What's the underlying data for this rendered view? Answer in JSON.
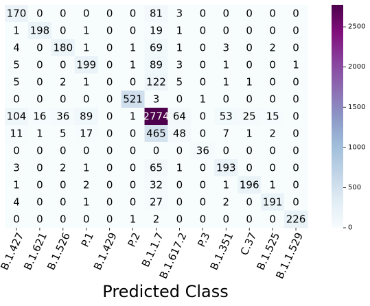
{
  "chart_data": {
    "type": "heatmap",
    "title": "",
    "xlabel": "Predicted Class",
    "ylabel": "",
    "x_categories": [
      "B.1.427",
      "B.1.621",
      "B.1.526",
      "P.1",
      "B.1.429",
      "P.2",
      "B.1.1.7",
      "B.1.617.2",
      "P.3",
      "B.1.351",
      "C.37",
      "B.1.525",
      "B.1.1.529"
    ],
    "matrix": [
      [
        170,
        0,
        0,
        0,
        0,
        0,
        81,
        3,
        0,
        0,
        0,
        0,
        0
      ],
      [
        1,
        198,
        0,
        1,
        0,
        0,
        19,
        1,
        0,
        0,
        0,
        0,
        0
      ],
      [
        4,
        0,
        180,
        1,
        0,
        1,
        69,
        1,
        0,
        3,
        0,
        2,
        0
      ],
      [
        5,
        0,
        0,
        199,
        0,
        1,
        89,
        3,
        0,
        1,
        0,
        0,
        1
      ],
      [
        5,
        0,
        2,
        1,
        0,
        0,
        122,
        5,
        0,
        1,
        1,
        0,
        0
      ],
      [
        0,
        0,
        0,
        0,
        0,
        521,
        3,
        0,
        1,
        0,
        0,
        0,
        0
      ],
      [
        104,
        16,
        36,
        89,
        0,
        1,
        2774,
        64,
        0,
        53,
        25,
        15,
        0
      ],
      [
        11,
        1,
        5,
        17,
        0,
        0,
        465,
        48,
        0,
        7,
        1,
        2,
        0
      ],
      [
        0,
        0,
        0,
        0,
        0,
        0,
        0,
        0,
        36,
        0,
        0,
        0,
        0
      ],
      [
        3,
        0,
        2,
        1,
        0,
        0,
        65,
        1,
        0,
        193,
        0,
        0,
        0
      ],
      [
        1,
        0,
        0,
        2,
        0,
        0,
        32,
        0,
        0,
        1,
        196,
        1,
        0
      ],
      [
        4,
        0,
        0,
        1,
        0,
        0,
        27,
        0,
        0,
        2,
        0,
        191,
        0
      ],
      [
        0,
        0,
        0,
        0,
        0,
        1,
        2,
        0,
        0,
        0,
        0,
        0,
        226
      ]
    ],
    "colormap": "BuPu",
    "colorbar": {
      "min": 0,
      "max": 2774,
      "ticks": [
        0,
        500,
        1000,
        1500,
        2000,
        2500
      ]
    },
    "text_colors": {
      "light": "#000000",
      "dark": "#ffffff"
    }
  }
}
